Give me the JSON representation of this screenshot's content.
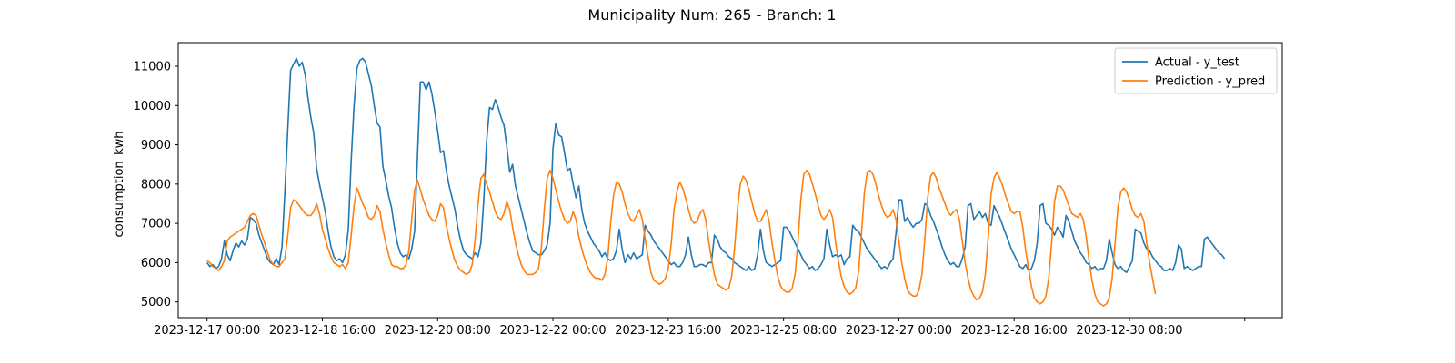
{
  "chart_data": {
    "type": "line",
    "title": "Municipality Num: 265 - Branch: 1",
    "xlabel": "",
    "ylabel": "consumption_kwh",
    "x_start": "2023-12-17 00:00",
    "x_step_hours": 1,
    "x_ticks": [
      {
        "value": "2023-12-17 00:00",
        "label": "2023-12-17 00:00"
      },
      {
        "value": "2023-12-18 16:00",
        "label": "2023-12-18 16:00"
      },
      {
        "value": "2023-12-20 08:00",
        "label": "2023-12-20 08:00"
      },
      {
        "value": "2023-12-22 00:00",
        "label": "2023-12-22 00:00"
      },
      {
        "value": "2023-12-23 16:00",
        "label": "2023-12-23 16:00"
      },
      {
        "value": "2023-12-25 08:00",
        "label": "2023-12-25 08:00"
      },
      {
        "value": "2023-12-27 00:00",
        "label": "2023-12-27 00:00"
      },
      {
        "value": "2023-12-28 16:00",
        "label": "2023-12-28 16:00"
      },
      {
        "value": "2023-12-30 08:00",
        "label": "2023-12-30 08:00"
      },
      {
        "value": "2024-01-01 00:00",
        "label": ""
      }
    ],
    "y_ticks": [
      5000,
      6000,
      7000,
      8000,
      9000,
      10000,
      11000
    ],
    "xlim": [
      "2023-12-16 14:00",
      "2024-01-01 13:00"
    ],
    "ylim": [
      4600,
      11600
    ],
    "grid": false,
    "legend_position": "top-right",
    "series": [
      {
        "name": "Actual - y_test",
        "color": "#1f77b4",
        "values": [
          6000,
          5900,
          5950,
          5850,
          5900,
          6100,
          6550,
          6200,
          6050,
          6300,
          6500,
          6400,
          6550,
          6450,
          6600,
          7150,
          7100,
          7000,
          6700,
          6500,
          6300,
          6100,
          6000,
          5950,
          6100,
          5950,
          6400,
          7800,
          9400,
          10900,
          11050,
          11200,
          11000,
          11100,
          10800,
          10200,
          9700,
          9300,
          8400,
          8000,
          7650,
          7300,
          6800,
          6400,
          6150,
          6050,
          6100,
          6000,
          6200,
          6850,
          8600,
          10000,
          10950,
          11150,
          11200,
          11100,
          10800,
          10500,
          10000,
          9550,
          9450,
          8450,
          8100,
          7700,
          7400,
          6900,
          6500,
          6250,
          6150,
          6200,
          6100,
          6350,
          6800,
          8700,
          10600,
          10600,
          10400,
          10600,
          10300,
          9850,
          9350,
          8800,
          8850,
          8350,
          7950,
          7650,
          7350,
          6900,
          6550,
          6300,
          6200,
          6150,
          6100,
          6250,
          6150,
          6500,
          7600,
          9100,
          9950,
          9900,
          10150,
          9950,
          9700,
          9500,
          8950,
          8300,
          8500,
          7950,
          7650,
          7350,
          7050,
          6750,
          6500,
          6300,
          6250,
          6200,
          6200,
          6300,
          6450,
          7000,
          8900,
          9550,
          9250,
          9200,
          8800,
          8350,
          8400,
          8000,
          7650,
          7950,
          7350,
          7000,
          6800,
          6650,
          6500,
          6400,
          6300,
          6150,
          6250,
          6100,
          6050,
          6100,
          6300,
          6850,
          6350,
          6000,
          6200,
          6100,
          6250,
          6100,
          6150,
          6200,
          6950,
          6800,
          6700,
          6550,
          6450,
          6350,
          6250,
          6150,
          6050,
          5950,
          6000,
          5900,
          5900,
          6000,
          6200,
          6650,
          6200,
          5900,
          5900,
          5950,
          5950,
          5900,
          6000,
          6000,
          6700,
          6600,
          6400,
          6300,
          6250,
          6150,
          6100,
          6000,
          5950,
          5900,
          5850,
          5800,
          5900,
          5800,
          5850,
          6200,
          6850,
          6300,
          6000,
          5950,
          5900,
          5950,
          6000,
          6050,
          6900,
          6900,
          6800,
          6650,
          6500,
          6350,
          6200,
          6050,
          5950,
          5850,
          5900,
          5800,
          5850,
          5950,
          6100,
          6850,
          6450,
          6150,
          6200,
          6150,
          6200,
          5950,
          6100,
          6150,
          6950,
          6850,
          6800,
          6650,
          6500,
          6350,
          6250,
          6150,
          6050,
          5950,
          5850,
          5900,
          5850,
          6000,
          6100,
          6750,
          7600,
          7600,
          7050,
          7150,
          7000,
          6900,
          7000,
          7000,
          7100,
          7500,
          7450,
          7200,
          7050,
          6850,
          6650,
          6400,
          6200,
          6050,
          5950,
          6000,
          5900,
          5900,
          6100,
          6400,
          7450,
          7500,
          7100,
          7200,
          7300,
          7150,
          7250,
          7000,
          6950,
          7450,
          7300,
          7150,
          6950,
          6750,
          6550,
          6350,
          6200,
          6050,
          5900,
          5850,
          5950,
          5800,
          5850,
          6050,
          6500,
          7450,
          7500,
          7000,
          6950,
          6850,
          6700,
          6900,
          6800,
          6650,
          7200,
          7050,
          6800,
          6550,
          6400,
          6250,
          6150,
          6000,
          5950,
          5850,
          5900,
          5800,
          5850,
          5850,
          6050,
          6600,
          6250,
          5950,
          5850,
          5900,
          5800,
          5750,
          5900,
          6050,
          6850,
          6800,
          6750,
          6500,
          6350,
          6300,
          6150,
          6050,
          5950,
          5900,
          5800,
          5800,
          5850,
          5800,
          6000,
          6450,
          6350,
          5850,
          5900,
          5850,
          5800,
          5850,
          5900,
          5900,
          6600,
          6650,
          6550,
          6450,
          6350,
          6250,
          6200,
          6100
        ]
      },
      {
        "name": "Prediction - y_pred",
        "color": "#ff7f0e",
        "values": [
          6050,
          6000,
          5900,
          5850,
          5800,
          5900,
          6050,
          6550,
          6650,
          6700,
          6750,
          6800,
          6850,
          6900,
          7050,
          7200,
          7250,
          7200,
          6950,
          6700,
          6500,
          6250,
          6050,
          5950,
          5900,
          5900,
          6000,
          6100,
          6700,
          7400,
          7600,
          7550,
          7450,
          7350,
          7250,
          7200,
          7200,
          7300,
          7500,
          7250,
          6850,
          6600,
          6350,
          6150,
          6000,
          5950,
          5900,
          5950,
          5850,
          6000,
          6700,
          7450,
          7900,
          7700,
          7500,
          7350,
          7150,
          7100,
          7200,
          7450,
          7300,
          6850,
          6500,
          6200,
          5950,
          5900,
          5900,
          5850,
          5850,
          5950,
          6300,
          7100,
          7850,
          8100,
          7850,
          7600,
          7400,
          7200,
          7100,
          7050,
          7200,
          7500,
          7400,
          6950,
          6600,
          6300,
          6050,
          5900,
          5800,
          5750,
          5700,
          5750,
          5950,
          6600,
          7500,
          8150,
          8250,
          8000,
          7800,
          7550,
          7300,
          7150,
          7100,
          7250,
          7550,
          7350,
          6900,
          6500,
          6200,
          5950,
          5800,
          5700,
          5700,
          5700,
          5750,
          5850,
          6400,
          7350,
          8150,
          8350,
          8150,
          7850,
          7550,
          7300,
          7100,
          7000,
          7050,
          7300,
          7100,
          6650,
          6350,
          6100,
          5900,
          5750,
          5650,
          5600,
          5600,
          5550,
          5700,
          6100,
          7000,
          7700,
          8050,
          8000,
          7800,
          7500,
          7250,
          7100,
          7050,
          7200,
          7350,
          7100,
          6600,
          6150,
          5750,
          5550,
          5500,
          5450,
          5500,
          5600,
          5850,
          6450,
          7350,
          7800,
          8050,
          7900,
          7650,
          7350,
          7100,
          7000,
          7050,
          7250,
          7350,
          7100,
          6550,
          6100,
          5700,
          5450,
          5400,
          5350,
          5300,
          5350,
          5650,
          6350,
          7350,
          8000,
          8200,
          8100,
          7850,
          7550,
          7250,
          7050,
          7050,
          7200,
          7350,
          7050,
          6500,
          6050,
          5650,
          5400,
          5300,
          5250,
          5250,
          5350,
          5700,
          6550,
          7600,
          8250,
          8350,
          8250,
          8000,
          7750,
          7450,
          7200,
          7100,
          7200,
          7350,
          7150,
          6550,
          6050,
          5650,
          5400,
          5250,
          5200,
          5250,
          5350,
          5750,
          6700,
          7750,
          8300,
          8350,
          8250,
          8000,
          7700,
          7450,
          7250,
          7150,
          7200,
          7350,
          7100,
          6550,
          6000,
          5600,
          5300,
          5200,
          5150,
          5150,
          5300,
          5700,
          6600,
          7650,
          8200,
          8300,
          8150,
          7900,
          7700,
          7500,
          7300,
          7200,
          7300,
          7350,
          7100,
          6550,
          6000,
          5600,
          5300,
          5150,
          5050,
          5100,
          5250,
          5700,
          6650,
          7750,
          8150,
          8300,
          8150,
          7950,
          7700,
          7500,
          7300,
          7250,
          7300,
          7300,
          6900,
          6300,
          5850,
          5400,
          5100,
          5000,
          4950,
          5000,
          5150,
          5600,
          6500,
          7550,
          7950,
          7950,
          7850,
          7650,
          7450,
          7250,
          7200,
          7150,
          7250,
          7100,
          6650,
          6050,
          5550,
          5200,
          5000,
          4950,
          4900,
          4950,
          5100,
          5600,
          6500,
          7400,
          7800,
          7900,
          7800,
          7600,
          7350,
          7200,
          7150,
          7250,
          7050,
          6500,
          6000,
          5600,
          5200
        ]
      }
    ]
  }
}
